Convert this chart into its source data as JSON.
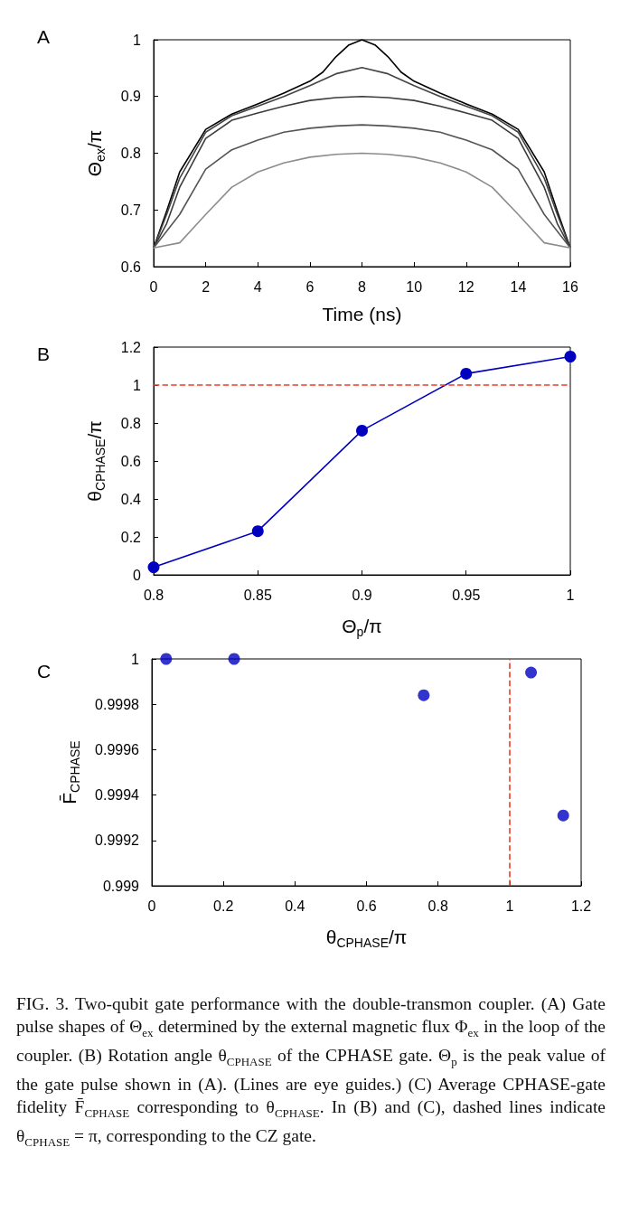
{
  "chart_data": [
    {
      "type": "line",
      "title": "A",
      "xlabel": "Time (ns)",
      "ylabel": "Θ$_{ex}$/π",
      "xlim": [
        0,
        16
      ],
      "xticks": [
        0,
        2,
        4,
        6,
        8,
        10,
        12,
        14,
        16
      ],
      "ylim": [
        0.6,
        1
      ],
      "yticks": [
        0.6,
        0.7,
        0.8,
        0.9,
        1
      ],
      "marker": "none",
      "line_style": "solid",
      "series": [
        {
          "color": "#000000",
          "x": [
            0,
            0.5,
            1,
            2,
            3,
            4,
            5,
            6,
            6.5,
            7,
            7.5,
            8,
            8.5,
            9,
            9.5,
            10,
            11,
            12,
            13,
            14,
            15,
            15.5,
            16
          ],
          "values": [
            0.633,
            0.698,
            0.767,
            0.842,
            0.869,
            0.887,
            0.906,
            0.927,
            0.943,
            0.97,
            0.991,
            1,
            0.991,
            0.97,
            0.943,
            0.927,
            0.906,
            0.887,
            0.869,
            0.842,
            0.767,
            0.698,
            0.633
          ]
        },
        {
          "color": "#444444",
          "x": [
            0,
            0.5,
            1,
            2,
            3,
            4,
            5,
            6,
            7,
            8,
            9,
            10,
            11,
            12,
            13,
            14,
            15,
            15.5,
            16
          ],
          "values": [
            0.633,
            0.692,
            0.756,
            0.837,
            0.866,
            0.883,
            0.9,
            0.919,
            0.94,
            0.951,
            0.94,
            0.919,
            0.9,
            0.883,
            0.866,
            0.837,
            0.756,
            0.692,
            0.633
          ]
        },
        {
          "color": "#3c3c3c",
          "x": [
            0,
            0.5,
            1,
            2,
            3,
            4,
            5,
            6,
            7,
            8,
            9,
            10,
            11,
            12,
            13,
            14,
            15,
            15.5,
            16
          ],
          "values": [
            0.633,
            0.676,
            0.74,
            0.826,
            0.858,
            0.871,
            0.883,
            0.893,
            0.898,
            0.9,
            0.898,
            0.893,
            0.883,
            0.871,
            0.858,
            0.826,
            0.74,
            0.676,
            0.633
          ]
        },
        {
          "color": "#555555",
          "x": [
            0,
            1,
            2,
            3,
            4,
            5,
            6,
            7,
            8,
            9,
            10,
            11,
            12,
            13,
            14,
            15,
            16
          ],
          "values": [
            0.633,
            0.692,
            0.772,
            0.806,
            0.823,
            0.837,
            0.844,
            0.848,
            0.85,
            0.848,
            0.844,
            0.837,
            0.823,
            0.806,
            0.772,
            0.692,
            0.633
          ]
        },
        {
          "color": "#8c8c8c",
          "x": [
            0,
            1,
            2,
            3,
            4,
            5,
            6,
            7,
            8,
            9,
            10,
            11,
            12,
            13,
            14,
            15,
            16
          ],
          "values": [
            0.633,
            0.642,
            0.692,
            0.74,
            0.767,
            0.783,
            0.793,
            0.798,
            0.8,
            0.798,
            0.793,
            0.783,
            0.767,
            0.74,
            0.692,
            0.642,
            0.633
          ]
        }
      ]
    },
    {
      "type": "line",
      "title": "B",
      "xlabel": "Θ$_{p}$/π",
      "ylabel": "θ$_{CPHASE}$/π",
      "xlim": [
        0.8,
        1
      ],
      "xticks": [
        0.8,
        0.85,
        0.9,
        0.95,
        1
      ],
      "ylim": [
        0,
        1.2
      ],
      "yticks": [
        0,
        0.2,
        0.4,
        0.6,
        0.8,
        1,
        1.2
      ],
      "marker": "circle",
      "line_style": "solid",
      "series": [
        {
          "color": "#0000c0",
          "x": [
            0.8,
            0.85,
            0.9,
            0.95,
            1
          ],
          "values": [
            0.04,
            0.23,
            0.76,
            1.06,
            1.15
          ]
        }
      ],
      "ref_lines": [
        {
          "axis": "y",
          "value": 1,
          "color": "#ee3b2b",
          "line_style": "dashed"
        }
      ]
    },
    {
      "type": "scatter",
      "title": "C",
      "xlabel": "θ$_{CPHASE}$/π",
      "ylabel": "F̄$_{CPHASE}$",
      "xlim": [
        0,
        1.2
      ],
      "xticks": [
        0,
        0.2,
        0.4,
        0.6,
        0.8,
        1,
        1.2
      ],
      "ylim": [
        0.999,
        1
      ],
      "yticks": [
        0.999,
        0.9992,
        0.9994,
        0.9996,
        0.9998,
        1
      ],
      "marker": "circle",
      "series": [
        {
          "color": "#0000c0",
          "x": [
            0.04,
            0.23,
            0.76,
            1.06,
            1.15
          ],
          "values": [
            1,
            1,
            0.99984,
            0.99994,
            0.99931
          ]
        }
      ],
      "ref_lines": [
        {
          "axis": "x",
          "value": 1,
          "color": "#ee3b2b",
          "line_style": "dashed"
        }
      ],
      "annotations": [
        "FIG. 3.   Two-qubit gate performance with the double-transmon coupler. (A) Gate pulse shapes of Θ$_{ex}$ determined by the external magnetic flux Φ$_{ex}$ in the loop of the coupler. (B) Rotation angle θ$_{CPHASE}$ of the CPHASE gate. Θ$_{p}$ is the peak value of the gate pulse shown in (A). (Lines are eye guides.) (C) Average CPHASE-gate fidelity F̄$_{CPHASE}$ corresponding to θ$_{CPHASE}$. In (B) and (C), dashed lines indicate θ$_{CPHASE}$ = π, corresponding to the CZ gate."
      ]
    }
  ]
}
